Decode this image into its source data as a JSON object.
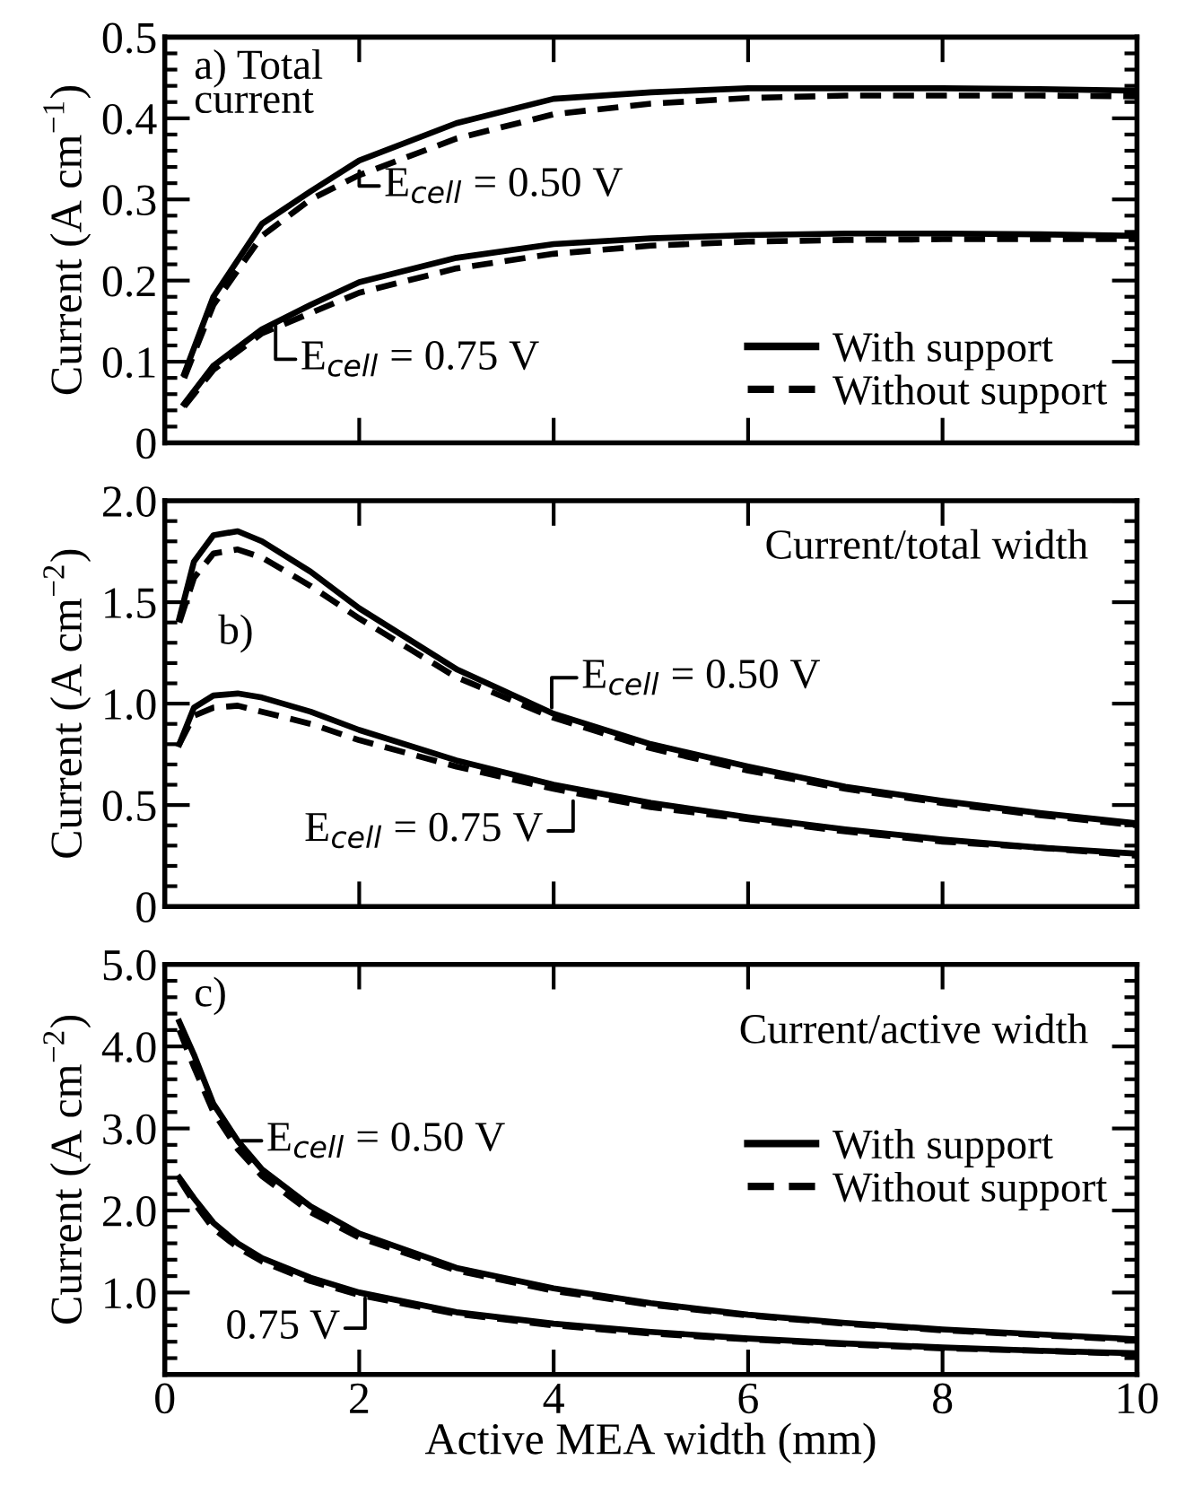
{
  "chart_data": [
    {
      "type": "line",
      "ylabel": "Current (A cm$^{−1}$)",
      "xlim": [
        0,
        10
      ],
      "xticks": [
        0,
        2,
        4,
        6,
        8,
        10
      ],
      "ylim": [
        0,
        0.5
      ],
      "yticks": [
        0,
        0.1,
        0.2,
        0.3,
        0.4,
        0.5
      ],
      "tick_labels": "y",
      "grid": false,
      "legend": "bottom right",
      "marker": "none",
      "x": [
        0.2,
        0.5,
        1,
        1.5,
        2,
        3,
        4,
        5,
        6,
        7,
        8,
        9,
        10
      ],
      "series": [
        {
          "name": "With support",
          "color": "#000000",
          "line_style": "solid",
          "values": [
            0.085,
            0.18,
            0.27,
            0.31,
            0.348,
            0.394,
            0.424,
            0.432,
            0.437,
            0.437,
            0.437,
            0.436,
            0.434
          ]
        },
        {
          "name": "Without support",
          "color": "#000000",
          "line_style": "dashed",
          "values": [
            0.08,
            0.17,
            0.255,
            0.3,
            0.33,
            0.375,
            0.405,
            0.418,
            0.425,
            0.428,
            0.428,
            0.428,
            0.427
          ]
        },
        {
          "color": "#000000",
          "line_style": "solid",
          "values": [
            0.048,
            0.095,
            0.14,
            0.17,
            0.198,
            0.228,
            0.245,
            0.252,
            0.256,
            0.258,
            0.258,
            0.257,
            0.255
          ]
        },
        {
          "color": "#000000",
          "line_style": "dashed",
          "values": [
            0.045,
            0.09,
            0.135,
            0.16,
            0.185,
            0.215,
            0.233,
            0.243,
            0.248,
            0.25,
            0.251,
            0.251,
            0.251
          ]
        }
      ],
      "annotations": [
        "a) Total\ncurrent",
        {
          "text": "E$_{cell}$ = 0.50 V",
          "x": 2.0,
          "y": 0.335
        },
        {
          "text": "E$_{cell}$ = 0.75 V",
          "x": 1.14,
          "y": 0.146
        }
      ]
    },
    {
      "type": "line",
      "ylabel": "Current (A cm$^{−2}$)",
      "xlim": [
        0,
        10
      ],
      "xticks": [
        0,
        2,
        4,
        6,
        8,
        10
      ],
      "ylim": [
        0,
        2.0
      ],
      "yticks": [
        0,
        {
          "value": 0.5,
          "label": "0.5"
        },
        {
          "value": 1.0,
          "label": "1.0"
        },
        {
          "value": 1.5,
          "label": "1.5"
        },
        {
          "value": 2.0,
          "label": "2.0"
        }
      ],
      "tick_labels": "y",
      "grid": false,
      "marker": "none",
      "x": [
        0.15,
        0.3,
        0.5,
        0.75,
        1,
        1.5,
        2,
        3,
        4,
        5,
        6,
        7,
        8,
        9,
        10
      ],
      "series": [
        {
          "color": "#000000",
          "line_style": "solid",
          "values": [
            1.42,
            1.7,
            1.83,
            1.85,
            1.8,
            1.65,
            1.47,
            1.17,
            0.95,
            0.8,
            0.69,
            0.59,
            0.52,
            0.46,
            0.41
          ]
        },
        {
          "color": "#000000",
          "line_style": "dashed",
          "values": [
            1.4,
            1.62,
            1.74,
            1.76,
            1.72,
            1.58,
            1.42,
            1.13,
            0.93,
            0.78,
            0.67,
            0.58,
            0.51,
            0.45,
            0.4
          ]
        },
        {
          "color": "#000000",
          "line_style": "solid",
          "values": [
            0.8,
            0.98,
            1.04,
            1.05,
            1.03,
            0.96,
            0.87,
            0.72,
            0.6,
            0.51,
            0.44,
            0.38,
            0.33,
            0.29,
            0.26
          ]
        },
        {
          "color": "#000000",
          "line_style": "dashed",
          "values": [
            0.8,
            0.94,
            0.98,
            0.99,
            0.96,
            0.9,
            0.82,
            0.69,
            0.58,
            0.49,
            0.43,
            0.37,
            0.32,
            0.29,
            0.25
          ]
        }
      ],
      "annotations": [
        "Current/total width",
        "b)",
        {
          "text": "E$_{cell}$ = 0.50 V",
          "x": 3.98,
          "y": 0.98
        },
        {
          "text": "E$_{cell}$ = 0.75 V",
          "x": 4.2,
          "y": 0.52
        }
      ]
    },
    {
      "type": "line",
      "xlabel": "Active MEA width (mm)",
      "ylabel": "Current (A cm$^{−2}$)",
      "xlim": [
        0,
        10
      ],
      "xticks": [
        0,
        2,
        4,
        6,
        8,
        10
      ],
      "ylim": [
        0,
        5.0
      ],
      "yticks": [
        {
          "value": 0,
          "label": null
        },
        {
          "value": 1.0,
          "label": "1.0"
        },
        {
          "value": 2.0,
          "label": "2.0"
        },
        {
          "value": 3.0,
          "label": "3.0"
        },
        {
          "value": 4.0,
          "label": "4.0"
        },
        {
          "value": 5.0,
          "label": "5.0"
        }
      ],
      "grid": false,
      "legend": "right",
      "marker": "none",
      "x": [
        0.15,
        0.3,
        0.5,
        0.75,
        1,
        1.5,
        2,
        3,
        4,
        5,
        6,
        7,
        8,
        9,
        10
      ],
      "series": [
        {
          "name": "With support",
          "color": "#000000",
          "line_style": "solid",
          "values": [
            4.3,
            3.9,
            3.3,
            2.85,
            2.5,
            2.05,
            1.72,
            1.3,
            1.05,
            0.87,
            0.73,
            0.63,
            0.55,
            0.49,
            0.43
          ]
        },
        {
          "name": "Without support",
          "color": "#000000",
          "line_style": "dashed",
          "values": [
            4.2,
            3.75,
            3.2,
            2.75,
            2.42,
            1.98,
            1.67,
            1.27,
            1.02,
            0.85,
            0.72,
            0.62,
            0.54,
            0.48,
            0.42
          ]
        },
        {
          "color": "#000000",
          "line_style": "solid",
          "values": [
            2.4,
            2.15,
            1.85,
            1.6,
            1.42,
            1.18,
            1.0,
            0.76,
            0.62,
            0.52,
            0.44,
            0.38,
            0.33,
            0.29,
            0.26
          ]
        },
        {
          "color": "#000000",
          "line_style": "dashed",
          "values": [
            2.38,
            2.1,
            1.78,
            1.55,
            1.38,
            1.14,
            0.97,
            0.74,
            0.6,
            0.5,
            0.43,
            0.37,
            0.32,
            0.29,
            0.25
          ]
        }
      ],
      "annotations": [
        "c)",
        "Current/active width",
        {
          "text": "E$_{cell}$ = 0.50 V",
          "x": 0.79,
          "y": 2.79
        },
        {
          "text": "0.75 V",
          "x": 2.06,
          "y": 0.93
        }
      ]
    }
  ]
}
